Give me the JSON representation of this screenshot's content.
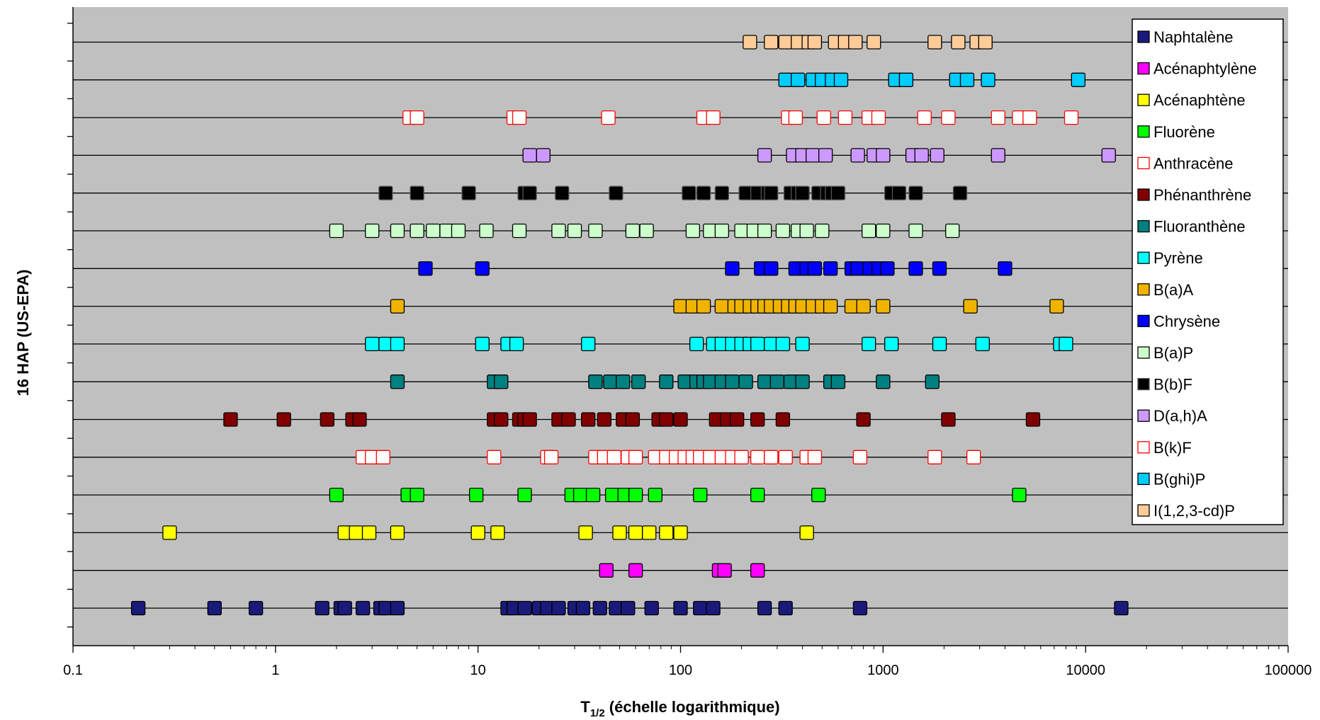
{
  "chart_data": {
    "type": "scatter",
    "title": "",
    "xlabel_main": "T",
    "xlabel_sub": "1/2",
    "xlabel_rest": " (échelle logarithmique)",
    "ylabel": "16 HAP (US-EPA)",
    "x_scale": "log",
    "xlim": [
      0.1,
      100000
    ],
    "x_ticks": [
      0.1,
      1,
      10,
      100,
      1000,
      10000,
      100000
    ],
    "x_tick_labels": [
      "0.1",
      "1",
      "10",
      "100",
      "1000",
      "10000",
      "100000"
    ],
    "grid": "horizontal lines per compound",
    "legend_position": "top-right",
    "series": [
      {
        "name": "Naphtalène",
        "row": 1,
        "fill": "#1a1a7a",
        "stroke": "#000000",
        "x": [
          0.21,
          0.5,
          0.8,
          1.7,
          2.1,
          2.2,
          2.7,
          3.3,
          3.5,
          4.0,
          14,
          15,
          17,
          20,
          22,
          25,
          30,
          33,
          40,
          48,
          55,
          72,
          100,
          125,
          145,
          260,
          330,
          770,
          15000
        ]
      },
      {
        "name": "Acénaphtylène",
        "row": 2,
        "fill": "#ff00ff",
        "stroke": "#000000",
        "x": [
          43,
          60,
          155,
          165,
          240
        ]
      },
      {
        "name": "Acénaphtène",
        "row": 3,
        "fill": "#ffff00",
        "stroke": "#000000",
        "x": [
          0.3,
          2.2,
          2.5,
          2.9,
          4.0,
          10,
          12.5,
          34,
          50,
          60,
          70,
          85,
          100,
          420
        ]
      },
      {
        "name": "Fluorène",
        "row": 4,
        "fill": "#00ff00",
        "stroke": "#000000",
        "x": [
          2.0,
          4.5,
          5.0,
          9.8,
          17,
          29,
          32,
          37,
          46,
          53,
          60,
          75,
          125,
          240,
          480,
          4700
        ]
      },
      {
        "name": "Anthracène",
        "row": 5,
        "fill": "#ffffff",
        "stroke": "#ff0000",
        "x": [
          2.7,
          3.0,
          3.4,
          12,
          22,
          23,
          38,
          42,
          47,
          55,
          60,
          75,
          85,
          95,
          105,
          115,
          125,
          140,
          160,
          180,
          200,
          240,
          280,
          330,
          420,
          460,
          770,
          1800,
          2800
        ]
      },
      {
        "name": "Phénanthrène",
        "row": 6,
        "fill": "#800000",
        "stroke": "#000000",
        "x": [
          0.6,
          1.1,
          1.8,
          2.4,
          2.6,
          12,
          13,
          16,
          17,
          18,
          25,
          28,
          35,
          42,
          52,
          58,
          78,
          85,
          100,
          150,
          170,
          190,
          240,
          320,
          800,
          2100,
          5500
        ]
      },
      {
        "name": "Fluoranthène",
        "row": 7,
        "fill": "#008080",
        "stroke": "#000000",
        "x": [
          4.0,
          12,
          13,
          38,
          45,
          52,
          62,
          85,
          105,
          120,
          130,
          140,
          160,
          180,
          210,
          260,
          300,
          350,
          400,
          550,
          600,
          1000,
          1750
        ]
      },
      {
        "name": "Pyrène",
        "row": 8,
        "fill": "#00ffff",
        "stroke": "#000000",
        "x": [
          3.0,
          3.5,
          4.0,
          10.5,
          14,
          15.5,
          35,
          120,
          145,
          160,
          180,
          200,
          220,
          240,
          280,
          320,
          400,
          850,
          1100,
          1900,
          3100,
          7500,
          8000
        ]
      },
      {
        "name": "B(a)A",
        "row": 9,
        "fill": "#f0b400",
        "stroke": "#000000",
        "x": [
          4.0,
          100,
          115,
          130,
          160,
          185,
          200,
          220,
          240,
          260,
          280,
          310,
          340,
          370,
          400,
          450,
          500,
          550,
          700,
          800,
          1000,
          2700,
          7200
        ]
      },
      {
        "name": "Chrysène",
        "row": 10,
        "fill": "#0000ff",
        "stroke": "#000000",
        "x": [
          5.5,
          10.5,
          180,
          250,
          280,
          370,
          420,
          460,
          550,
          700,
          750,
          860,
          950,
          1050,
          1450,
          1900,
          4000
        ]
      },
      {
        "name": "B(a)P",
        "row": 11,
        "fill": "#ccffcc",
        "stroke": "#000000",
        "x": [
          2.0,
          3.0,
          4.0,
          5.0,
          6.0,
          7.0,
          8.0,
          11,
          16,
          25,
          30,
          38,
          58,
          68,
          115,
          140,
          160,
          200,
          230,
          260,
          320,
          380,
          420,
          500,
          850,
          1000,
          1450,
          2200
        ]
      },
      {
        "name": "B(b)F",
        "row": 12,
        "fill": "#000000",
        "stroke": "#555555",
        "x": [
          3.5,
          5.0,
          9.0,
          17,
          18,
          26,
          48,
          110,
          130,
          160,
          210,
          240,
          270,
          280,
          350,
          380,
          400,
          480,
          530,
          560,
          600,
          1100,
          1200,
          1450,
          2400
        ]
      },
      {
        "name": "D(a,h)A",
        "row": 13,
        "fill": "#cc99ff",
        "stroke": "#000000",
        "x": [
          18,
          21,
          260,
          360,
          400,
          450,
          520,
          750,
          900,
          1000,
          1400,
          1550,
          1850,
          3700,
          13000
        ]
      },
      {
        "name": "B(k)F",
        "row": 14,
        "fill": "#ffffff",
        "stroke": "#ff0000",
        "x": [
          4.6,
          5.0,
          15,
          16,
          44,
          130,
          145,
          340,
          370,
          510,
          650,
          850,
          950,
          1600,
          2100,
          3700,
          4700,
          5300,
          8500
        ]
      },
      {
        "name": "B(ghi)P",
        "row": 15,
        "fill": "#00ccff",
        "stroke": "#000000",
        "x": [
          330,
          380,
          450,
          500,
          560,
          620,
          1150,
          1300,
          2300,
          2600,
          3300,
          9200
        ]
      },
      {
        "name": "I(1,2,3-cd)P",
        "row": 16,
        "fill": "#ffcc99",
        "stroke": "#000000",
        "x": [
          220,
          280,
          330,
          380,
          430,
          460,
          580,
          650,
          730,
          900,
          1800,
          2350,
          2900,
          3200
        ]
      }
    ]
  },
  "colors": {
    "plot_background": "#c0c0c0",
    "row_line": "#000000",
    "legend_background": "#ffffff"
  }
}
